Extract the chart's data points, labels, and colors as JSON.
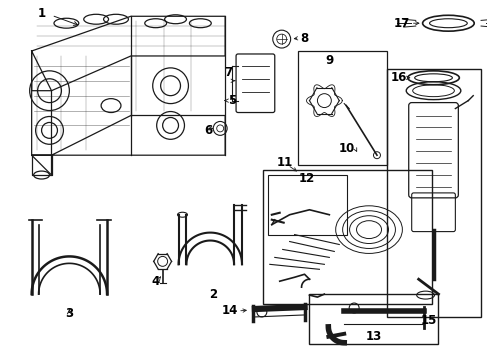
{
  "bg_color": "#ffffff",
  "line_color": "#1a1a1a",
  "fig_width": 4.89,
  "fig_height": 3.6,
  "dpi": 100,
  "font_size": 8.5
}
